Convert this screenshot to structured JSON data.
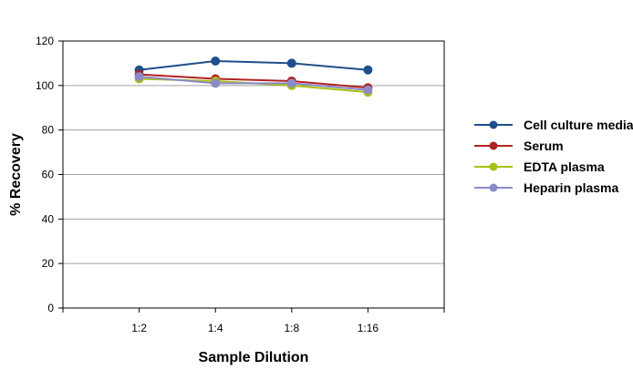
{
  "chart_data": {
    "type": "line",
    "title": "",
    "xlabel": "Sample Dilution",
    "ylabel": "% Recovery",
    "categories": [
      "1:2",
      "1:4",
      "1:8",
      "1:16"
    ],
    "ylim": [
      0,
      120
    ],
    "yticks": [
      0,
      20,
      40,
      60,
      80,
      100,
      120
    ],
    "grid": "horizontal",
    "legend_position": "right",
    "series": [
      {
        "name": "Cell culture media",
        "color": "#1f4e8c",
        "values": [
          107,
          111,
          110,
          107
        ]
      },
      {
        "name": "Serum",
        "color": "#b22222",
        "values": [
          105,
          103,
          102,
          99
        ]
      },
      {
        "name": "EDTA plasma",
        "color": "#a8c010",
        "values": [
          103,
          102,
          100,
          97
        ]
      },
      {
        "name": "Heparin plasma",
        "color": "#8a8ac8",
        "values": [
          104,
          101,
          101,
          98
        ]
      }
    ]
  }
}
